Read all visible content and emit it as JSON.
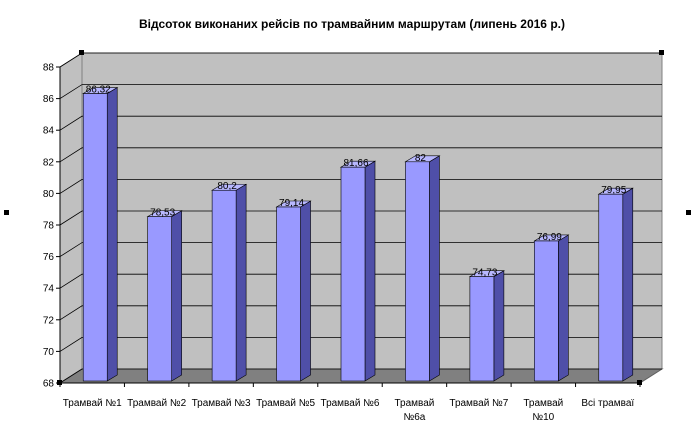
{
  "chart_data": {
    "type": "bar",
    "title": "Відсоток виконаних рейсів по трамвайним маршрутам (липень 2016 р.)",
    "categories": [
      [
        "Трамвай №1"
      ],
      [
        "Трамвай №2"
      ],
      [
        "Трамвай №3"
      ],
      [
        "Трамвай №5"
      ],
      [
        "Трамвай №6"
      ],
      [
        "Трамвай",
        "№6а"
      ],
      [
        "Трамвай №7"
      ],
      [
        "Трамвай",
        "№10"
      ],
      [
        "Всі трамваї"
      ]
    ],
    "values": [
      86.32,
      78.53,
      80.2,
      79.14,
      81.66,
      82,
      74.73,
      76.99,
      79.95
    ],
    "value_labels": [
      "86,32",
      "78,53",
      "80,2",
      "79,14",
      "81,66",
      "82",
      "74,73",
      "76,99",
      "79,95"
    ],
    "ylim": [
      68,
      88
    ],
    "yticks": [
      68,
      70,
      72,
      74,
      76,
      78,
      80,
      82,
      84,
      86,
      88
    ],
    "xlabel": "",
    "ylabel": "",
    "grid": true,
    "legend": "none",
    "colors": {
      "bar_front": "#9999ff",
      "bar_side": "#4f4fa8",
      "bar_top": "#b8b8ff",
      "wall": "#c0c0c0",
      "floor": "#808080"
    }
  }
}
